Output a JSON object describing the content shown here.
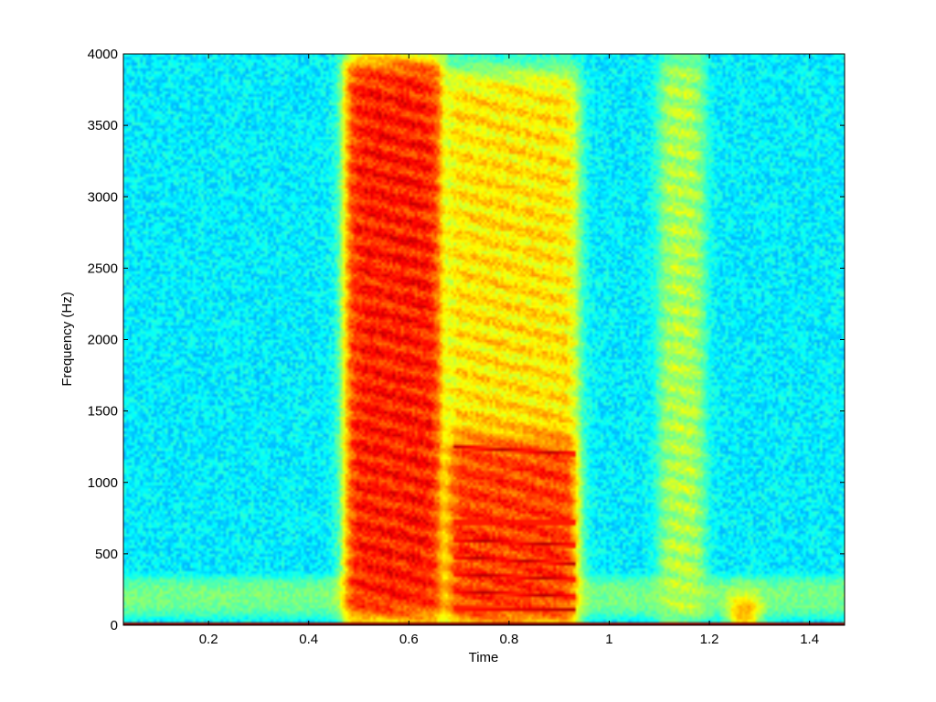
{
  "chart_data": {
    "type": "heatmap",
    "title": "",
    "xlabel": "Time",
    "ylabel": "Frequency (Hz)",
    "xlim": [
      0.03,
      1.47
    ],
    "ylim": [
      0,
      4000
    ],
    "x_ticks": [
      0.2,
      0.4,
      0.6,
      0.8,
      1,
      1.2,
      1.4
    ],
    "x_tick_labels": [
      "0.2",
      "0.4",
      "0.6",
      "0.8",
      "1",
      "1.2",
      "1.4"
    ],
    "y_ticks": [
      0,
      500,
      1000,
      1500,
      2000,
      2500,
      3000,
      3500,
      4000
    ],
    "y_tick_labels": [
      "0",
      "500",
      "1000",
      "1500",
      "2000",
      "2500",
      "3000",
      "3500",
      "4000"
    ],
    "colormap": "jet",
    "grid": false,
    "legend": "none",
    "energy_regions": [
      {
        "t_start": 0.47,
        "t_end": 0.67,
        "f_low": 0,
        "f_high": 4000,
        "intensity": 0.85
      },
      {
        "t_start": 0.67,
        "t_end": 0.94,
        "f_low": 0,
        "f_high": 3900,
        "intensity": 0.65
      },
      {
        "t_start": 0.68,
        "t_end": 0.93,
        "f_low": 0,
        "f_high": 1300,
        "intensity": 0.82
      },
      {
        "t_start": 1.1,
        "t_end": 1.19,
        "f_low": 0,
        "f_high": 4000,
        "intensity": 0.55
      },
      {
        "t_start": 1.24,
        "t_end": 1.3,
        "f_low": 0,
        "f_high": 150,
        "intensity": 0.9
      }
    ],
    "harmonic_lines": [
      {
        "t_start": 0.69,
        "t_end": 0.93,
        "f_start": 120,
        "f_end": 110
      },
      {
        "t_start": 0.69,
        "t_end": 0.93,
        "f_start": 240,
        "f_end": 200
      },
      {
        "t_start": 0.69,
        "t_end": 0.93,
        "f_start": 360,
        "f_end": 320
      },
      {
        "t_start": 0.69,
        "t_end": 0.93,
        "f_start": 480,
        "f_end": 430
      },
      {
        "t_start": 0.69,
        "t_end": 0.93,
        "f_start": 600,
        "f_end": 560
      },
      {
        "t_start": 0.69,
        "t_end": 0.93,
        "f_start": 720,
        "f_end": 720
      },
      {
        "t_start": 0.69,
        "t_end": 0.93,
        "f_start": 1250,
        "f_end": 1200
      }
    ],
    "background_bands": [
      {
        "f_low": 0,
        "f_high": 400,
        "intensity": 0.5
      }
    ]
  },
  "colors": {
    "background": "#ffffff",
    "axis": "#000000",
    "colormap_low": "#00008f",
    "colormap_high": "#800000"
  }
}
